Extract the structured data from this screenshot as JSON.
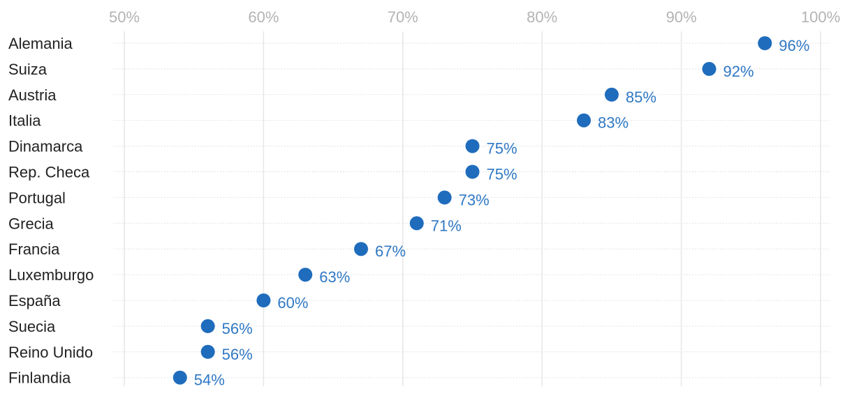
{
  "chart_data": {
    "type": "scatter",
    "title": "",
    "xlabel": "",
    "ylabel": "",
    "xlim": [
      50,
      100
    ],
    "x_ticks": [
      50,
      60,
      70,
      80,
      90,
      100
    ],
    "x_tick_labels": [
      "50%",
      "60%",
      "70%",
      "80%",
      "90%",
      "100%"
    ],
    "grid": true,
    "categories": [
      "Alemania",
      "Suiza",
      "Austria",
      "Italia",
      "Dinamarca",
      "Rep. Checa",
      "Portugal",
      "Grecia",
      "Francia",
      "Luxemburgo",
      "España",
      "Suecia",
      "Reino Unido",
      "Finlandia"
    ],
    "values": [
      96,
      92,
      85,
      83,
      75,
      75,
      73,
      71,
      67,
      63,
      60,
      56,
      56,
      54
    ],
    "value_labels": [
      "96%",
      "92%",
      "85%",
      "83%",
      "75%",
      "75%",
      "73%",
      "71%",
      "67%",
      "63%",
      "60%",
      "56%",
      "56%",
      "54%"
    ],
    "colors": {
      "point": "#1f6cbd",
      "value_label": "#2f78c4",
      "category_label": "#222222",
      "tick_label": "#b3b3b3",
      "gridline": "#e6e6e6",
      "row_line": "#d9d9d9"
    }
  }
}
